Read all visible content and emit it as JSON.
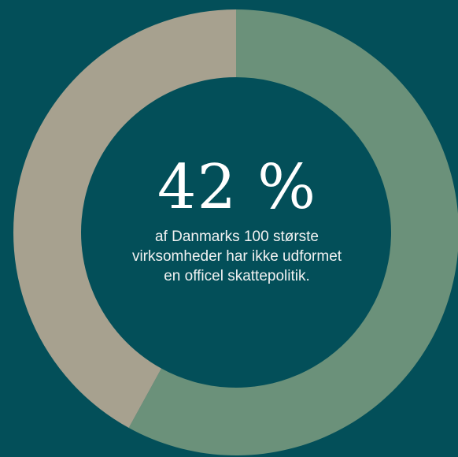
{
  "chart_data": {
    "type": "pie",
    "donut": true,
    "slices": [
      {
        "value": 58,
        "color": "#6b917a"
      },
      {
        "value": 42,
        "color": "#a7a18f"
      }
    ],
    "center_value": "42 %",
    "center_caption": [
      "af Danmarks 100 største",
      "virksomheder har ikke udformet",
      "en officel skattepolitik."
    ]
  },
  "colors": {
    "background": "#034f59",
    "text": "#ffffff"
  }
}
